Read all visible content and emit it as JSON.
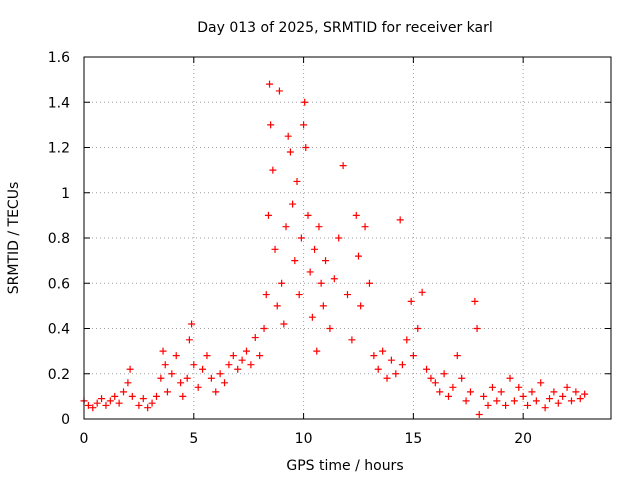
{
  "chart_data": {
    "type": "scatter",
    "title": "Day 013 of 2025, SRMTID for receiver karl",
    "xlabel": "GPS time / hours",
    "ylabel": "SRMTID / TECUs",
    "xlim": [
      0,
      24
    ],
    "ylim": [
      0,
      1.6
    ],
    "xticks": [
      0,
      5,
      10,
      15,
      20
    ],
    "yticks": [
      0,
      0.2,
      0.4,
      0.6,
      0.8,
      1,
      1.2,
      1.4,
      1.6
    ],
    "xtick_labels": [
      "0",
      "5",
      "10",
      "15",
      "20"
    ],
    "ytick_labels": [
      "0",
      "0.2",
      "0.4",
      "0.6",
      "0.8",
      "1",
      "1.2",
      "1.4",
      "1.6"
    ],
    "grid": true,
    "marker": "plus",
    "series_color": "#ff0000",
    "series": [
      {
        "name": "SRMTID",
        "points": [
          [
            0.0,
            0.08
          ],
          [
            0.2,
            0.06
          ],
          [
            0.4,
            0.05
          ],
          [
            0.6,
            0.07
          ],
          [
            0.8,
            0.09
          ],
          [
            1.0,
            0.06
          ],
          [
            1.2,
            0.08
          ],
          [
            1.4,
            0.1
          ],
          [
            1.6,
            0.07
          ],
          [
            1.8,
            0.12
          ],
          [
            2.0,
            0.16
          ],
          [
            2.1,
            0.22
          ],
          [
            2.2,
            0.1
          ],
          [
            2.5,
            0.06
          ],
          [
            2.7,
            0.09
          ],
          [
            2.9,
            0.05
          ],
          [
            3.1,
            0.07
          ],
          [
            3.3,
            0.1
          ],
          [
            3.5,
            0.18
          ],
          [
            3.6,
            0.3
          ],
          [
            3.7,
            0.24
          ],
          [
            3.8,
            0.12
          ],
          [
            4.0,
            0.2
          ],
          [
            4.2,
            0.28
          ],
          [
            4.4,
            0.16
          ],
          [
            4.5,
            0.1
          ],
          [
            4.7,
            0.18
          ],
          [
            4.8,
            0.35
          ],
          [
            4.9,
            0.42
          ],
          [
            5.0,
            0.24
          ],
          [
            5.2,
            0.14
          ],
          [
            5.4,
            0.22
          ],
          [
            5.6,
            0.28
          ],
          [
            5.8,
            0.18
          ],
          [
            6.0,
            0.12
          ],
          [
            6.2,
            0.2
          ],
          [
            6.4,
            0.16
          ],
          [
            6.6,
            0.24
          ],
          [
            6.8,
            0.28
          ],
          [
            7.0,
            0.22
          ],
          [
            7.2,
            0.26
          ],
          [
            7.4,
            0.3
          ],
          [
            7.6,
            0.24
          ],
          [
            7.8,
            0.36
          ],
          [
            8.0,
            0.28
          ],
          [
            8.2,
            0.4
          ],
          [
            8.3,
            0.55
          ],
          [
            8.4,
            0.9
          ],
          [
            8.45,
            1.48
          ],
          [
            8.5,
            1.3
          ],
          [
            8.6,
            1.1
          ],
          [
            8.7,
            0.75
          ],
          [
            8.8,
            0.5
          ],
          [
            8.9,
            1.45
          ],
          [
            9.0,
            0.6
          ],
          [
            9.1,
            0.42
          ],
          [
            9.2,
            0.85
          ],
          [
            9.3,
            1.25
          ],
          [
            9.4,
            1.18
          ],
          [
            9.5,
            0.95
          ],
          [
            9.6,
            0.7
          ],
          [
            9.7,
            1.05
          ],
          [
            9.8,
            0.55
          ],
          [
            9.9,
            0.8
          ],
          [
            10.0,
            1.3
          ],
          [
            10.05,
            1.4
          ],
          [
            10.1,
            1.2
          ],
          [
            10.2,
            0.9
          ],
          [
            10.3,
            0.65
          ],
          [
            10.4,
            0.45
          ],
          [
            10.5,
            0.75
          ],
          [
            10.6,
            0.3
          ],
          [
            10.7,
            0.85
          ],
          [
            10.8,
            0.6
          ],
          [
            10.9,
            0.5
          ],
          [
            11.0,
            0.7
          ],
          [
            11.2,
            0.4
          ],
          [
            11.4,
            0.62
          ],
          [
            11.6,
            0.8
          ],
          [
            11.8,
            1.12
          ],
          [
            12.0,
            0.55
          ],
          [
            12.2,
            0.35
          ],
          [
            12.4,
            0.9
          ],
          [
            12.5,
            0.72
          ],
          [
            12.6,
            0.5
          ],
          [
            12.8,
            0.85
          ],
          [
            13.0,
            0.6
          ],
          [
            13.2,
            0.28
          ],
          [
            13.4,
            0.22
          ],
          [
            13.6,
            0.3
          ],
          [
            13.8,
            0.18
          ],
          [
            14.0,
            0.26
          ],
          [
            14.2,
            0.2
          ],
          [
            14.4,
            0.88
          ],
          [
            14.5,
            0.24
          ],
          [
            14.7,
            0.35
          ],
          [
            14.9,
            0.52
          ],
          [
            15.0,
            0.28
          ],
          [
            15.2,
            0.4
          ],
          [
            15.4,
            0.56
          ],
          [
            15.6,
            0.22
          ],
          [
            15.8,
            0.18
          ],
          [
            16.0,
            0.16
          ],
          [
            16.2,
            0.12
          ],
          [
            16.4,
            0.2
          ],
          [
            16.6,
            0.1
          ],
          [
            16.8,
            0.14
          ],
          [
            17.0,
            0.28
          ],
          [
            17.2,
            0.18
          ],
          [
            17.4,
            0.08
          ],
          [
            17.6,
            0.12
          ],
          [
            17.8,
            0.52
          ],
          [
            17.9,
            0.4
          ],
          [
            18.0,
            0.02
          ],
          [
            18.2,
            0.1
          ],
          [
            18.4,
            0.06
          ],
          [
            18.6,
            0.14
          ],
          [
            18.8,
            0.08
          ],
          [
            19.0,
            0.12
          ],
          [
            19.2,
            0.06
          ],
          [
            19.4,
            0.18
          ],
          [
            19.6,
            0.08
          ],
          [
            19.8,
            0.14
          ],
          [
            20.0,
            0.1
          ],
          [
            20.2,
            0.06
          ],
          [
            20.4,
            0.12
          ],
          [
            20.6,
            0.08
          ],
          [
            20.8,
            0.16
          ],
          [
            21.0,
            0.05
          ],
          [
            21.2,
            0.09
          ],
          [
            21.4,
            0.12
          ],
          [
            21.6,
            0.07
          ],
          [
            21.8,
            0.1
          ],
          [
            22.0,
            0.14
          ],
          [
            22.2,
            0.08
          ],
          [
            22.4,
            0.12
          ],
          [
            22.6,
            0.09
          ],
          [
            22.8,
            0.11
          ]
        ]
      }
    ]
  }
}
